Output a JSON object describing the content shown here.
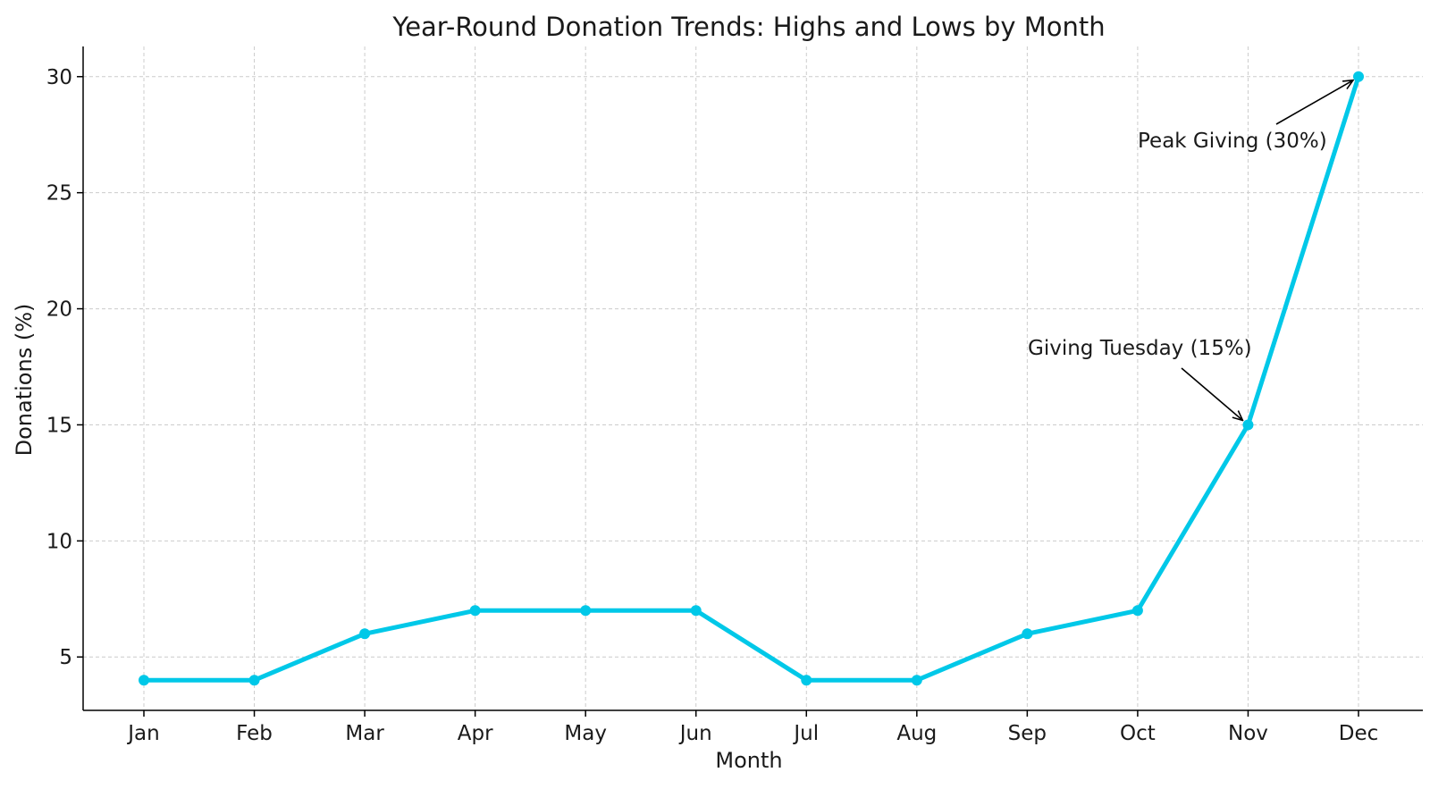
{
  "chart_data": {
    "type": "line",
    "title": "Year-Round Donation Trends: Highs and Lows by Month",
    "xlabel": "Month",
    "ylabel": "Donations (%)",
    "categories": [
      "Jan",
      "Feb",
      "Mar",
      "Apr",
      "May",
      "Jun",
      "Jul",
      "Aug",
      "Sep",
      "Oct",
      "Nov",
      "Dec"
    ],
    "series": [
      {
        "values": [
          4,
          4,
          6,
          7,
          7,
          7,
          4,
          4,
          6,
          7,
          15,
          30
        ],
        "color": "#00c8e8"
      }
    ],
    "yticks": [
      5,
      10,
      15,
      20,
      25,
      30
    ],
    "ylim": [
      2.7,
      31.3
    ],
    "grid": true,
    "annotations": [
      {
        "text": "Peak Giving (30%)",
        "target_category": "Dec",
        "target_value": 30
      },
      {
        "text": "Giving Tuesday (15%)",
        "target_category": "Nov",
        "target_value": 15
      }
    ]
  }
}
